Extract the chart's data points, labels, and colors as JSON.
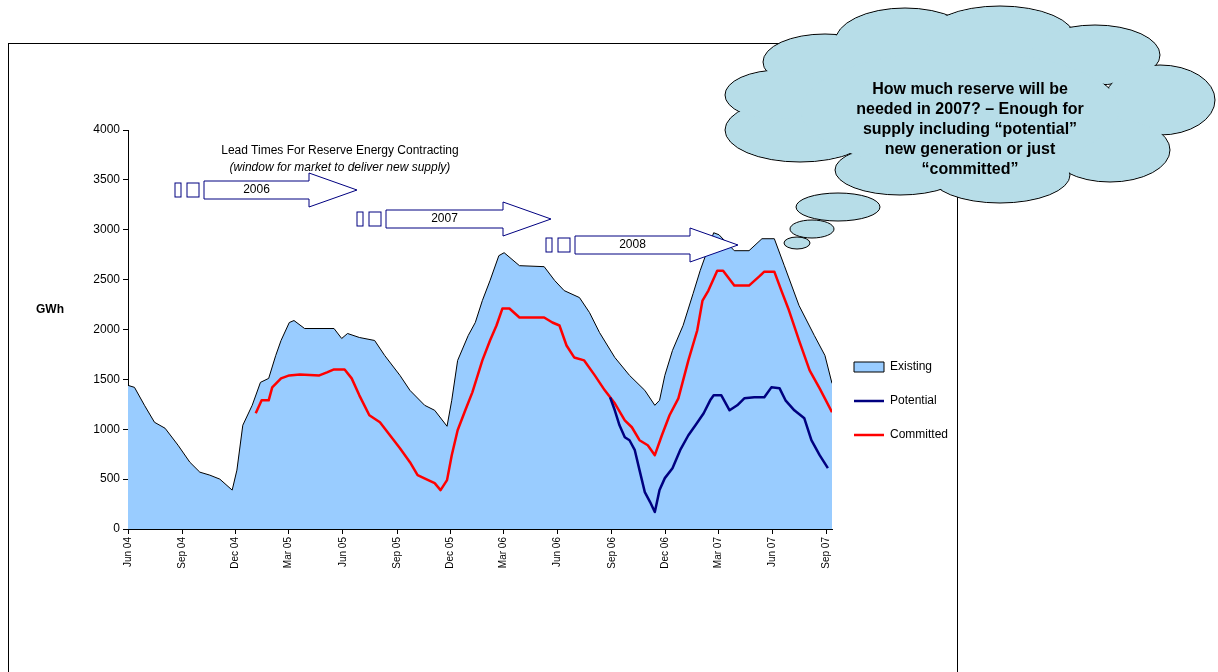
{
  "chart_data": {
    "type": "area",
    "ylabel": "GWh",
    "ylim": [
      0,
      4000
    ],
    "yticks": [
      0,
      500,
      1000,
      1500,
      2000,
      2500,
      3000,
      3500,
      4000
    ],
    "xlim": [
      "2004-06-01",
      "2007-09-10"
    ],
    "xticks": [
      {
        "value": "2004-06-01",
        "label": "Jun 04"
      },
      {
        "value": "2004-09-01",
        "label": "Sep 04"
      },
      {
        "value": "2004-12-01",
        "label": "Dec 04"
      },
      {
        "value": "2005-03-01",
        "label": "Mar 05"
      },
      {
        "value": "2005-06-01",
        "label": "Jun 05"
      },
      {
        "value": "2005-09-01",
        "label": "Sep 05"
      },
      {
        "value": "2005-12-01",
        "label": "Dec 05"
      },
      {
        "value": "2006-03-01",
        "label": "Mar 06"
      },
      {
        "value": "2006-06-01",
        "label": "Jun 06"
      },
      {
        "value": "2006-09-01",
        "label": "Sep 06"
      },
      {
        "value": "2006-12-01",
        "label": "Dec 06"
      },
      {
        "value": "2007-03-01",
        "label": "Mar 07"
      },
      {
        "value": "2007-06-01",
        "label": "Jun 07"
      },
      {
        "value": "2007-09-01",
        "label": "Sep 07"
      }
    ],
    "grid": false,
    "legend": "right",
    "marker": "none",
    "annotations": [
      "Lead Times For Reserve Energy Contracting",
      "(window for market to deliver new supply)",
      "2006",
      "2007",
      "2008",
      "How much reserve will be needed in 2007? – Enough for supply including “potential” new generation or just “committed”"
    ],
    "series": [
      {
        "name": "Existing",
        "color": "#99ccff",
        "x": [
          "2004-06-01",
          "2004-06-12",
          "2004-06-29",
          "2004-07-16",
          "2004-08-03",
          "2004-08-25",
          "2004-09-14",
          "2004-10-01",
          "2004-10-18",
          "2004-11-04",
          "2004-11-25",
          "2004-12-03",
          "2004-12-13",
          "2004-12-29",
          "2005-01-12",
          "2005-01-26",
          "2005-02-07",
          "2005-02-16",
          "2005-03-02",
          "2005-03-10",
          "2005-03-28",
          "2005-05-17",
          "2005-05-30",
          "2005-06-09",
          "2005-06-29",
          "2005-07-25",
          "2005-08-11",
          "2005-09-06",
          "2005-09-23",
          "2005-10-18",
          "2005-11-04",
          "2005-11-25",
          "2005-12-03",
          "2005-12-13",
          "2005-12-31",
          "2006-01-12",
          "2006-01-24",
          "2006-02-06",
          "2006-02-21",
          "2006-03-02",
          "2006-03-28",
          "2006-05-09",
          "2006-05-27",
          "2006-06-12",
          "2006-07-08",
          "2006-07-25",
          "2006-08-11",
          "2006-09-06",
          "2006-10-01",
          "2006-10-27",
          "2006-11-13",
          "2006-11-21",
          "2006-11-30",
          "2006-12-13",
          "2006-12-31",
          "2007-01-17",
          "2007-01-29",
          "2007-02-21",
          "2007-03-02",
          "2007-03-28",
          "2007-04-22",
          "2007-05-14",
          "2007-06-04",
          "2007-06-21",
          "2007-07-16",
          "2007-08-11",
          "2007-08-29",
          "2007-09-10"
        ],
        "values": [
          1440,
          1420,
          1240,
          1070,
          1010,
          840,
          670,
          570,
          540,
          500,
          390,
          590,
          1040,
          1240,
          1470,
          1510,
          1740,
          1890,
          2070,
          2090,
          2010,
          2010,
          1910,
          1960,
          1920,
          1890,
          1740,
          1540,
          1390,
          1240,
          1190,
          1030,
          1290,
          1690,
          1940,
          2070,
          2290,
          2490,
          2740,
          2770,
          2640,
          2630,
          2490,
          2390,
          2320,
          2170,
          1970,
          1720,
          1540,
          1390,
          1240,
          1290,
          1540,
          1790,
          2040,
          2360,
          2590,
          2970,
          2950,
          2790,
          2790,
          2910,
          2910,
          2640,
          2240,
          1940,
          1740,
          1460
        ]
      },
      {
        "name": "Potential",
        "type": "line",
        "color": "#000080",
        "x": [
          "2006-08-29",
          "2006-09-06",
          "2006-09-14",
          "2006-09-23",
          "2006-10-01",
          "2006-10-10",
          "2006-10-18",
          "2006-10-27",
          "2006-11-05",
          "2006-11-13",
          "2006-11-21",
          "2006-11-30",
          "2006-12-13",
          "2006-12-26",
          "2007-01-09",
          "2007-01-21",
          "2007-02-04",
          "2007-02-15",
          "2007-02-21",
          "2007-03-06",
          "2007-03-20",
          "2007-04-02",
          "2007-04-14",
          "2007-05-01",
          "2007-05-18",
          "2007-05-30",
          "2007-06-13",
          "2007-06-23",
          "2007-07-08",
          "2007-07-25",
          "2007-08-06",
          "2007-08-20",
          "2007-09-03"
        ],
        "values": [
          1320,
          1190,
          1040,
          920,
          890,
          790,
          590,
          370,
          270,
          170,
          390,
          510,
          610,
          790,
          940,
          1040,
          1160,
          1290,
          1340,
          1340,
          1190,
          1240,
          1310,
          1320,
          1320,
          1420,
          1410,
          1290,
          1190,
          1110,
          890,
          740,
          610
        ]
      },
      {
        "name": "Committed",
        "type": "line",
        "color": "#ff0000",
        "x": [
          "2005-01-04",
          "2005-01-14",
          "2005-01-26",
          "2005-02-01",
          "2005-02-16",
          "2005-03-02",
          "2005-03-20",
          "2005-04-22",
          "2005-05-05",
          "2005-05-17",
          "2005-06-04",
          "2005-06-16",
          "2005-06-29",
          "2005-07-16",
          "2005-08-03",
          "2005-08-20",
          "2005-09-06",
          "2005-09-23",
          "2005-10-06",
          "2005-10-24",
          "2005-11-04",
          "2005-11-14",
          "2005-11-25",
          "2005-12-03",
          "2005-12-13",
          "2005-12-26",
          "2006-01-07",
          "2006-01-24",
          "2006-02-06",
          "2006-02-17",
          "2006-02-27",
          "2006-03-11",
          "2006-03-28",
          "2006-05-09",
          "2006-05-23",
          "2006-06-04",
          "2006-06-16",
          "2006-06-29",
          "2006-07-16",
          "2006-08-03",
          "2006-08-20",
          "2006-09-06",
          "2006-09-23",
          "2006-10-05",
          "2006-10-18",
          "2006-11-01",
          "2006-11-13",
          "2006-11-25",
          "2006-12-08",
          "2006-12-23",
          "2007-01-09",
          "2007-01-24",
          "2007-02-02",
          "2007-02-12",
          "2007-02-27",
          "2007-03-09",
          "2007-03-28",
          "2007-04-22",
          "2007-05-09",
          "2007-05-18",
          "2007-06-04",
          "2007-06-16",
          "2007-06-29",
          "2007-07-16",
          "2007-08-03",
          "2007-08-20",
          "2007-09-10"
        ],
        "values": [
          1160,
          1290,
          1290,
          1420,
          1510,
          1540,
          1550,
          1540,
          1570,
          1600,
          1600,
          1510,
          1340,
          1140,
          1070,
          940,
          810,
          670,
          540,
          490,
          460,
          390,
          490,
          740,
          990,
          1190,
          1370,
          1690,
          1890,
          2040,
          2210,
          2210,
          2120,
          2120,
          2070,
          2040,
          1840,
          1720,
          1690,
          1540,
          1390,
          1260,
          1090,
          1020,
          890,
          840,
          740,
          940,
          1140,
          1310,
          1690,
          1990,
          2290,
          2390,
          2590,
          2590,
          2440,
          2440,
          2530,
          2580,
          2580,
          2390,
          2190,
          1890,
          1590,
          1410,
          1170
        ]
      }
    ]
  }
}
